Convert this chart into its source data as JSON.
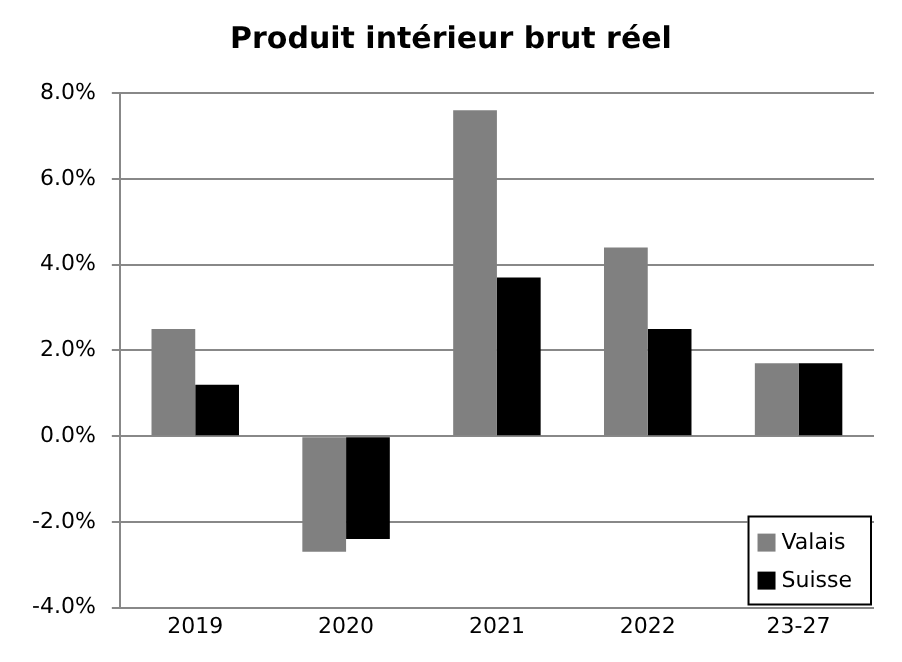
{
  "chart_data": {
    "type": "bar",
    "title": "Produit intérieur  brut réel",
    "categories": [
      "2019",
      "2020",
      "2021",
      "2022",
      "23-27"
    ],
    "series": [
      {
        "name": "Valais",
        "color": "#808080",
        "values": [
          2.5,
          -2.7,
          7.6,
          4.4,
          1.7
        ]
      },
      {
        "name": "Suisse",
        "color": "#000000",
        "values": [
          1.2,
          -2.4,
          3.7,
          2.5,
          1.7
        ]
      }
    ],
    "ylim": [
      -4,
      8
    ],
    "yticks": [
      {
        "value": -4,
        "label": "-4.0%"
      },
      {
        "value": -2,
        "label": "-2.0%"
      },
      {
        "value": 0,
        "label": "0.0%"
      },
      {
        "value": 2,
        "label": "2.0%"
      },
      {
        "value": 4,
        "label": "4.0%"
      },
      {
        "value": 6,
        "label": "6.0%"
      },
      {
        "value": 8,
        "label": "8.0%"
      }
    ],
    "grid": "y",
    "legend": "bottom right"
  }
}
